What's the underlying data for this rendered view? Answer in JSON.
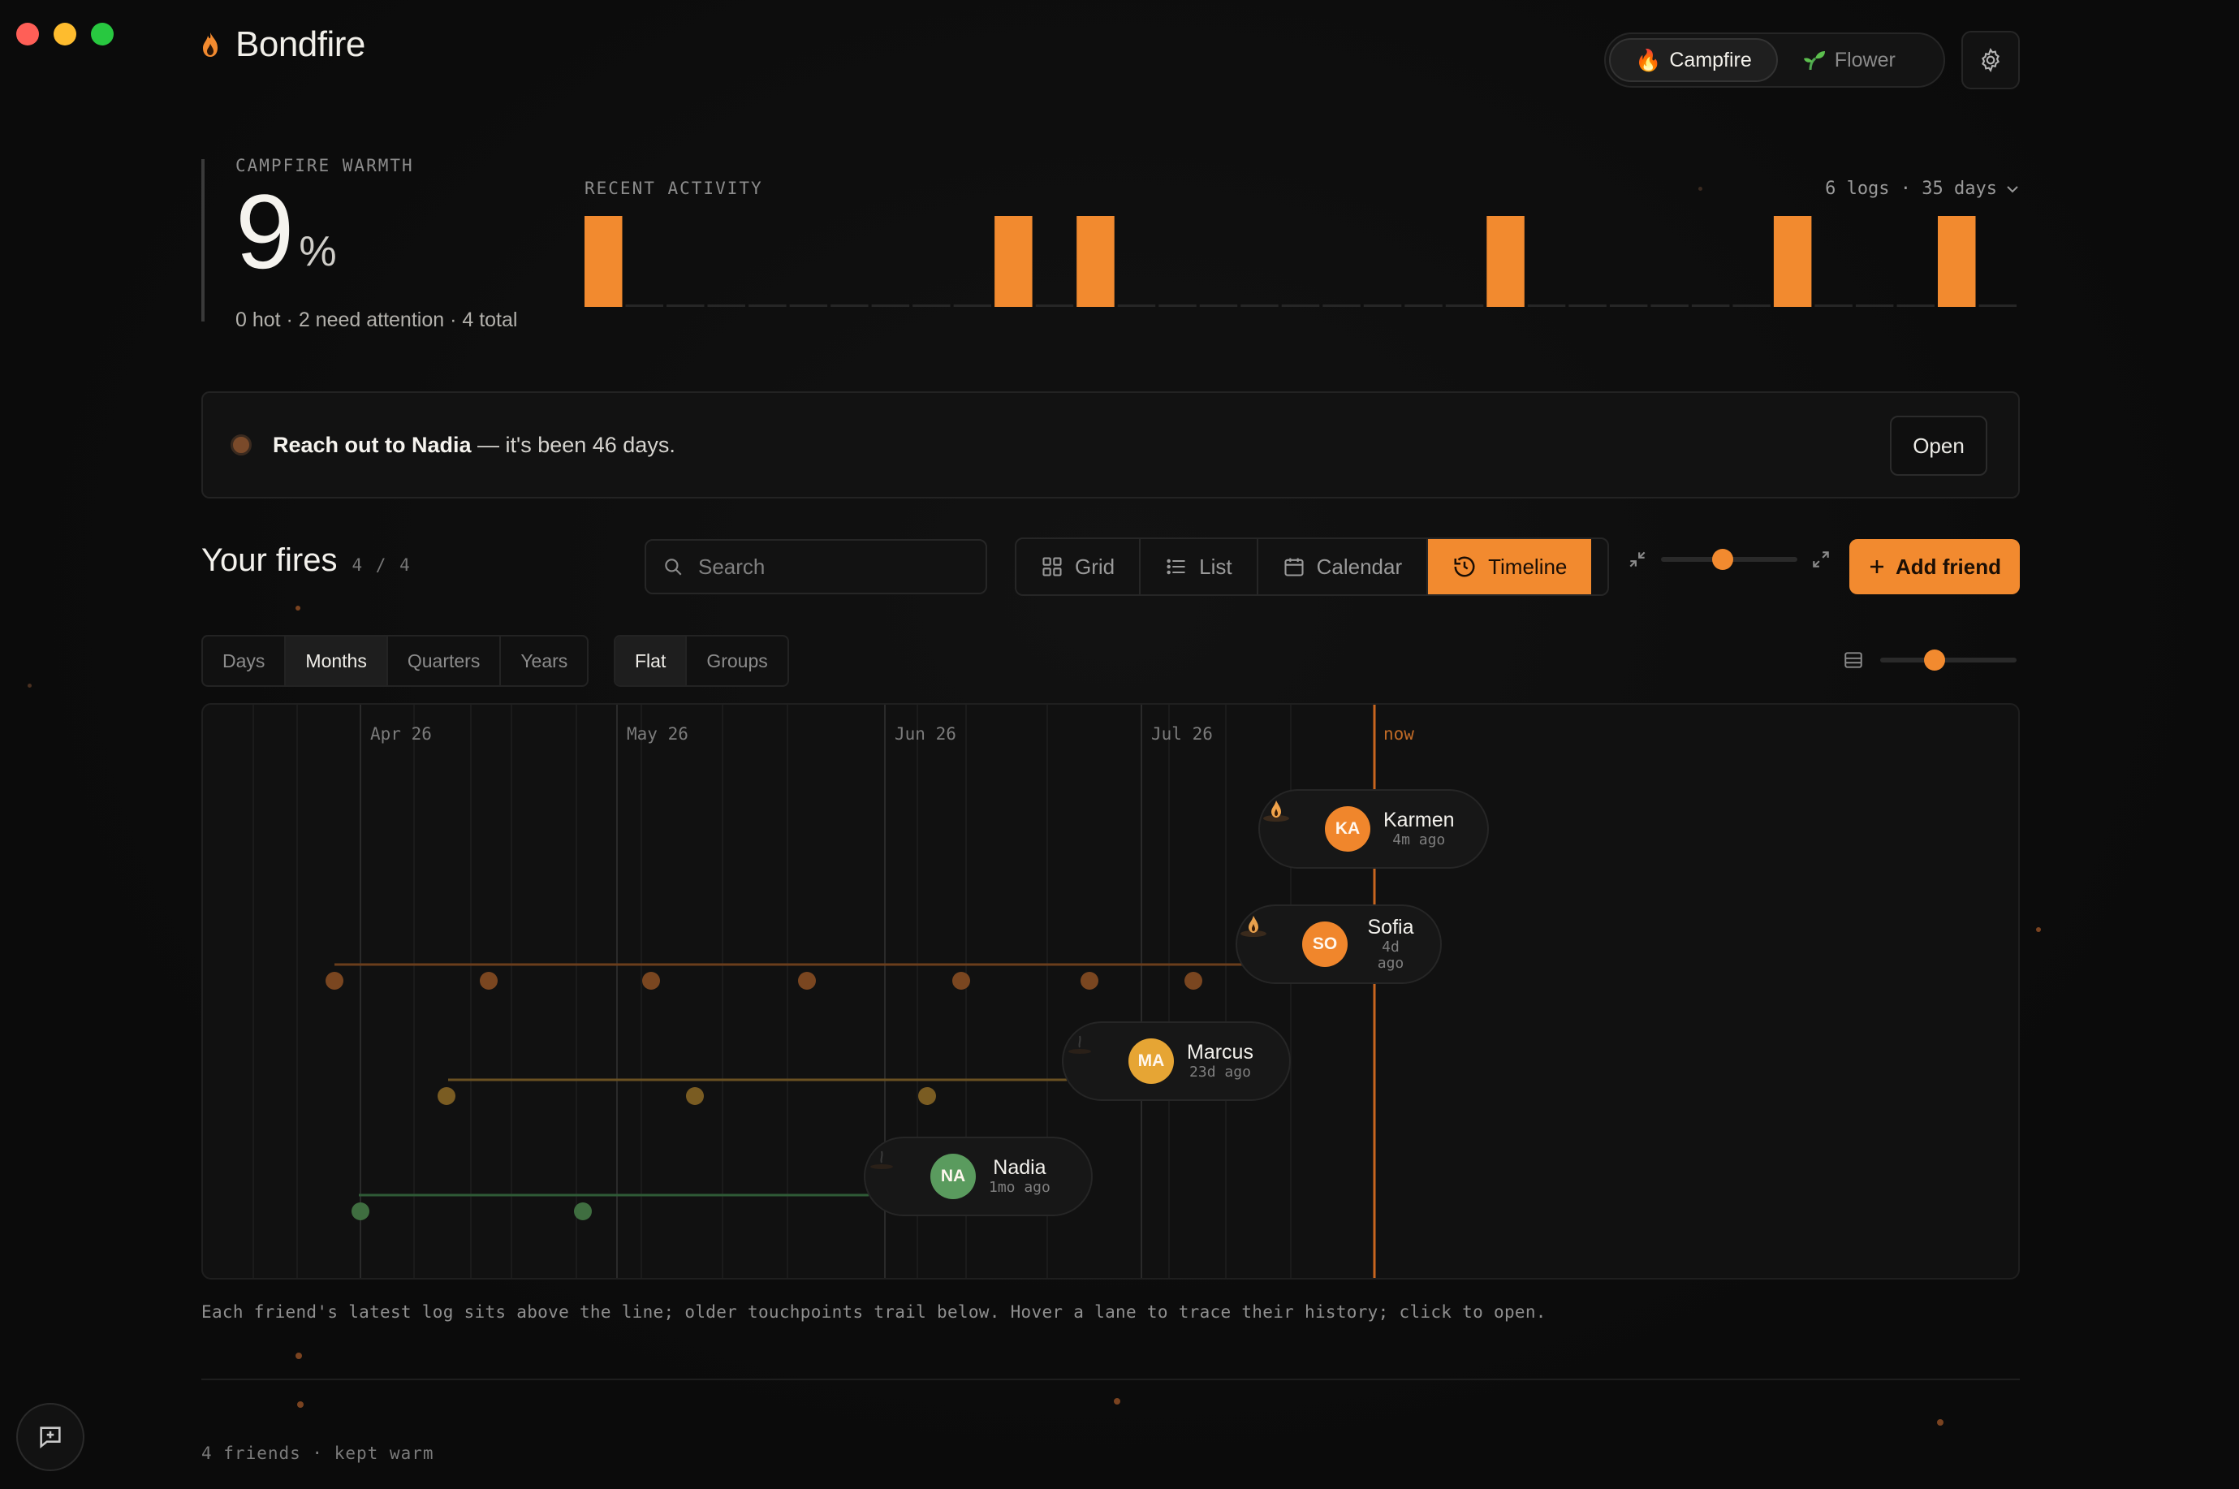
{
  "app": {
    "name": "Bondfire"
  },
  "mode_toggle": {
    "items": [
      {
        "label": "Campfire",
        "icon": "fire-icon",
        "active": true
      },
      {
        "label": "Flower",
        "icon": "sprout-icon",
        "active": false
      }
    ]
  },
  "warmth": {
    "label": "CAMPFIRE WARMTH",
    "value": "9",
    "unit": "%",
    "summary": "0 hot · 2 need attention · 4 total"
  },
  "activity": {
    "label": "RECENT ACTIVITY",
    "meta": "6 logs · 35 days",
    "days": 35,
    "log_days": [
      0,
      10,
      12,
      22,
      29,
      33
    ]
  },
  "reminder": {
    "name": "Reach out to Nadia",
    "rest": " — it's been 46 days.",
    "button": "Open"
  },
  "fires": {
    "title": "Your fires",
    "count": "4 / 4"
  },
  "search": {
    "placeholder": "Search"
  },
  "views": [
    {
      "label": "Grid",
      "icon": "grid-icon",
      "active": false
    },
    {
      "label": "List",
      "icon": "list-icon",
      "active": false
    },
    {
      "label": "Calendar",
      "icon": "calendar-icon",
      "active": false
    },
    {
      "label": "Timeline",
      "icon": "history-icon",
      "active": true
    }
  ],
  "zoom_level": 0.45,
  "add_button": "Add friend",
  "ranges": [
    "Days",
    "Months",
    "Quarters",
    "Years"
  ],
  "range_active": "Months",
  "layouts": [
    "Flat",
    "Groups"
  ],
  "layout_active": "Flat",
  "density_level": 0.4,
  "timeline": {
    "months": [
      "Apr 26",
      "May 26",
      "Jun 26",
      "Jul 26"
    ],
    "now_label": "now",
    "friends": [
      {
        "initials": "KA",
        "name": "Karmen",
        "ago": "4m ago",
        "color": "#f0862c"
      },
      {
        "initials": "SO",
        "name": "Sofia",
        "ago": "4d ago",
        "color": "#f0862c"
      },
      {
        "initials": "MA",
        "name": "Marcus",
        "ago": "23d ago",
        "color": "#e6a534"
      },
      {
        "initials": "NA",
        "name": "Nadia",
        "ago": "1mo ago",
        "color": "#5a9b5e"
      }
    ]
  },
  "hint": "Each friend's latest log sits above the line; older touchpoints trail below. Hover a lane to trace their history; click to open.",
  "footer": "4 friends · kept warm",
  "colors": {
    "accent": "#f28a2f",
    "background": "#0c0c0c"
  }
}
